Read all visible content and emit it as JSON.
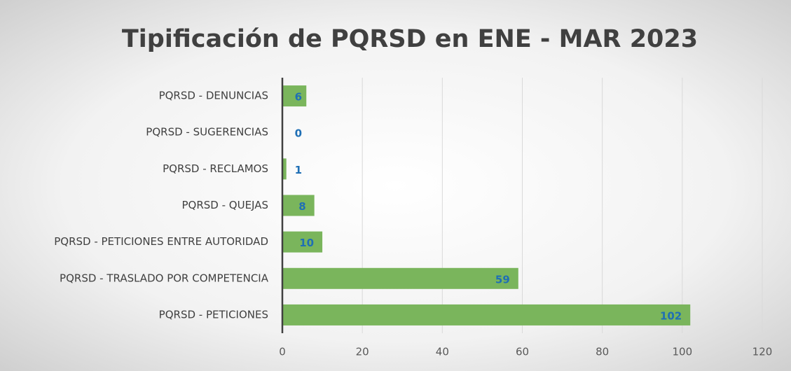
{
  "chart_data": {
    "type": "bar",
    "orientation": "horizontal",
    "title": "Tipificación de PQRSD en ENE - MAR 2023",
    "categories": [
      "PQRSD - DENUNCIAS",
      "PQRSD - SUGERENCIAS",
      "PQRSD - RECLAMOS",
      "PQRSD - QUEJAS",
      "PQRSD - PETICIONES ENTRE AUTORIDAD",
      "PQRSD - TRASLADO POR COMPETENCIA",
      "PQRSD - PETICIONES"
    ],
    "values": [
      6,
      0,
      1,
      8,
      10,
      59,
      102
    ],
    "color": "#7ab55c",
    "xlim": [
      0,
      120
    ],
    "xticks": [
      0,
      20,
      40,
      60,
      80,
      100,
      120
    ],
    "grid": true
  }
}
